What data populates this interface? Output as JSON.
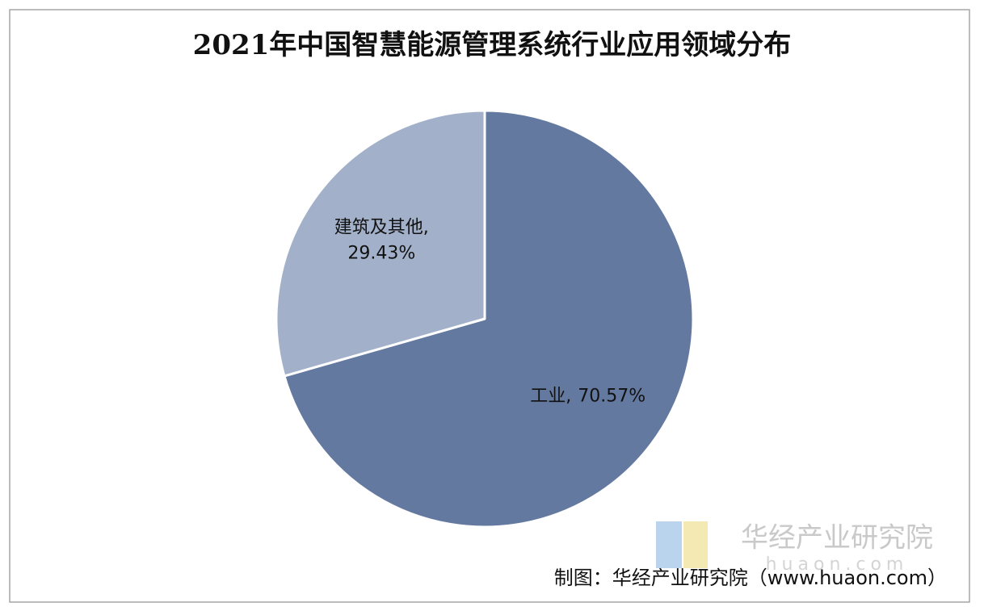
{
  "chart_data": {
    "type": "pie",
    "title": "2021年中国智慧能源管理系统行业应用领域分布",
    "categories": [
      "工业",
      "建筑及其他"
    ],
    "values": [
      70.57,
      29.43
    ],
    "value_labels": [
      "70.57%",
      "29.43%"
    ],
    "label_separator": ",",
    "colors": [
      "#6479a0",
      "#a2b1c9"
    ],
    "watermark": "华经产业研究院",
    "watermark_domain": "huaon.com",
    "source": "制图：华经产业研究院（www.huaon.com）"
  }
}
